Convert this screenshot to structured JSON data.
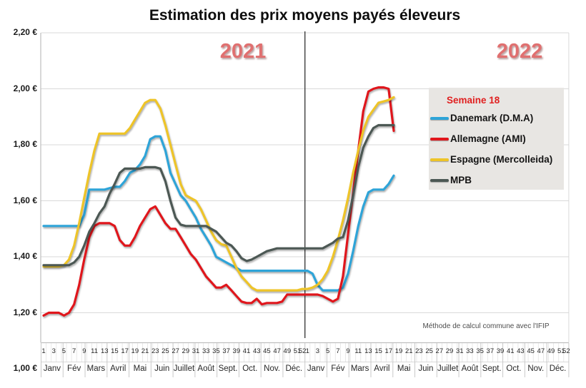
{
  "note": "Méthode de calcul commune avec l'IFIP",
  "legend": {
    "heading": "Semaine 18",
    "items": [
      {
        "label": "Danemark (D.M.A)",
        "color": "#2EA4D8"
      },
      {
        "label": "Allemagne (AMI)",
        "color": "#E0161C"
      },
      {
        "label": "Espagne (Mercolleida)",
        "color": "#EEC428"
      },
      {
        "label": "MPB",
        "color": "#4C5854"
      }
    ]
  },
  "chart_data": {
    "type": "line",
    "title": "Estimation des prix moyens payés éleveurs",
    "xlabel": "",
    "ylabel": "",
    "ylim": [
      1.0,
      2.2
    ],
    "grid": "horizontal",
    "legend_position": "right",
    "years": [
      "2021",
      "2022"
    ],
    "y_ticks": [
      "2,20 €",
      "2,00 €",
      "1,80 €",
      "1,60 €",
      "1,40 €",
      "1,20 €",
      "1,00 €"
    ],
    "week_ticks": [
      "1",
      "3",
      "5",
      "7",
      "9",
      "11",
      "13",
      "15",
      "17",
      "19",
      "21",
      "23",
      "25",
      "27",
      "29",
      "31",
      "33",
      "35",
      "37",
      "39",
      "41",
      "43",
      "45",
      "47",
      "49",
      "51",
      "52"
    ],
    "months": [
      "Janv",
      "Fév",
      "Mars",
      "Avril",
      "Mai",
      "Juin",
      "Juillet",
      "Août",
      "Sept.",
      "Oct.",
      "Nov.",
      "Déc."
    ],
    "x_unit": "semaine (1-52 par année)",
    "annotation_divider": "séparation 2021 / 2022",
    "series": [
      {
        "name": "Danemark (D.M.A)",
        "color": "#2EA4D8",
        "values_2021": [
          1.51,
          1.51,
          1.51,
          1.51,
          1.51,
          1.51,
          1.51,
          1.51,
          1.55,
          1.64,
          1.64,
          1.64,
          1.64,
          1.645,
          1.65,
          1.65,
          1.67,
          1.7,
          1.71,
          1.73,
          1.76,
          1.82,
          1.83,
          1.83,
          1.78,
          1.7,
          1.66,
          1.62,
          1.6,
          1.57,
          1.54,
          1.5,
          1.47,
          1.44,
          1.4,
          1.39,
          1.38,
          1.37,
          1.36,
          1.35,
          1.35,
          1.35,
          1.35,
          1.35,
          1.35,
          1.35,
          1.35,
          1.35,
          1.35,
          1.35,
          1.35,
          1.35
        ],
        "values_2022": [
          1.35,
          1.34,
          1.3,
          1.28,
          1.28,
          1.28,
          1.28,
          1.29,
          1.34,
          1.42,
          1.51,
          1.58,
          1.63,
          1.64,
          1.64,
          1.64,
          1.66,
          1.69
        ]
      },
      {
        "name": "Allemagne (AMI)",
        "color": "#E0161C",
        "values_2021": [
          1.19,
          1.2,
          1.2,
          1.2,
          1.19,
          1.2,
          1.23,
          1.3,
          1.39,
          1.47,
          1.51,
          1.52,
          1.52,
          1.52,
          1.51,
          1.46,
          1.44,
          1.44,
          1.47,
          1.51,
          1.54,
          1.57,
          1.58,
          1.55,
          1.52,
          1.5,
          1.5,
          1.47,
          1.44,
          1.41,
          1.39,
          1.36,
          1.33,
          1.31,
          1.29,
          1.29,
          1.3,
          1.28,
          1.26,
          1.24,
          1.235,
          1.235,
          1.25,
          1.23,
          1.235,
          1.235,
          1.235,
          1.24,
          1.265,
          1.265,
          1.265,
          1.265
        ],
        "values_2022": [
          1.265,
          1.265,
          1.265,
          1.26,
          1.25,
          1.24,
          1.25,
          1.33,
          1.48,
          1.63,
          1.78,
          1.92,
          1.99,
          2.0,
          2.005,
          2.005,
          2.0,
          1.85
        ]
      },
      {
        "name": "Espagne (Mercolleida)",
        "color": "#EEC428",
        "values_2021": [
          1.365,
          1.365,
          1.365,
          1.365,
          1.37,
          1.39,
          1.44,
          1.52,
          1.61,
          1.7,
          1.78,
          1.84,
          1.84,
          1.84,
          1.84,
          1.84,
          1.84,
          1.86,
          1.89,
          1.92,
          1.95,
          1.96,
          1.96,
          1.93,
          1.87,
          1.8,
          1.73,
          1.66,
          1.62,
          1.61,
          1.6,
          1.57,
          1.53,
          1.49,
          1.46,
          1.445,
          1.44,
          1.4,
          1.36,
          1.33,
          1.31,
          1.29,
          1.28,
          1.28,
          1.28,
          1.28,
          1.28,
          1.28,
          1.28,
          1.28,
          1.28,
          1.285
        ],
        "values_2022": [
          1.285,
          1.29,
          1.3,
          1.32,
          1.35,
          1.4,
          1.46,
          1.53,
          1.61,
          1.7,
          1.78,
          1.85,
          1.9,
          1.925,
          1.95,
          1.955,
          1.96,
          1.97
        ]
      },
      {
        "name": "MPB",
        "color": "#4C5854",
        "values_2021": [
          1.37,
          1.37,
          1.37,
          1.37,
          1.37,
          1.37,
          1.38,
          1.4,
          1.44,
          1.49,
          1.52,
          1.555,
          1.58,
          1.625,
          1.66,
          1.7,
          1.715,
          1.715,
          1.715,
          1.715,
          1.72,
          1.72,
          1.72,
          1.715,
          1.67,
          1.6,
          1.54,
          1.515,
          1.51,
          1.51,
          1.51,
          1.51,
          1.51,
          1.5,
          1.49,
          1.47,
          1.45,
          1.44,
          1.42,
          1.395,
          1.385,
          1.39,
          1.4,
          1.41,
          1.42,
          1.425,
          1.43,
          1.43,
          1.43,
          1.43,
          1.43,
          1.43
        ],
        "values_2022": [
          1.43,
          1.43,
          1.43,
          1.43,
          1.44,
          1.45,
          1.465,
          1.47,
          1.53,
          1.62,
          1.72,
          1.79,
          1.83,
          1.86,
          1.87,
          1.87,
          1.87,
          1.87
        ]
      }
    ]
  }
}
